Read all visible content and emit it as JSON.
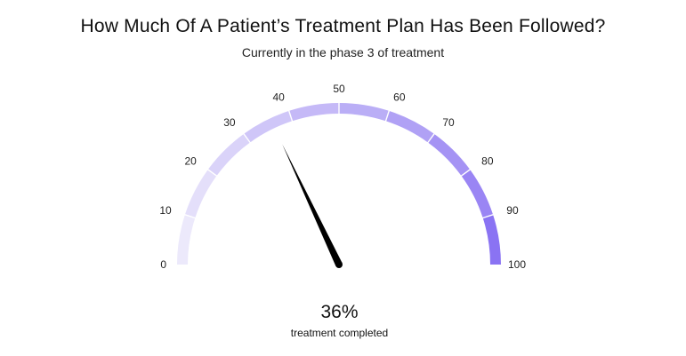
{
  "chart_data": {
    "type": "gauge",
    "title": "How Much Of A Patient’s Treatment Plan Has Been Followed?",
    "subtitle": "Currently in the phase 3 of treatment",
    "min": 0,
    "max": 100,
    "value": 36,
    "value_text": "36%",
    "value_label": "treatment completed",
    "tick_labels": [
      "0",
      "10",
      "20",
      "30",
      "40",
      "50",
      "60",
      "70",
      "80",
      "90",
      "100"
    ],
    "band_colors": [
      "#ECE9FB",
      "#E4DFFA",
      "#DAD3F9",
      "#CFC6F8",
      "#C5B9F7",
      "#BAAEF6",
      "#B0A1F5",
      "#A593F4",
      "#9A85F4",
      "#8A73F3",
      "#7454F1"
    ],
    "needle_color": "#000000"
  }
}
